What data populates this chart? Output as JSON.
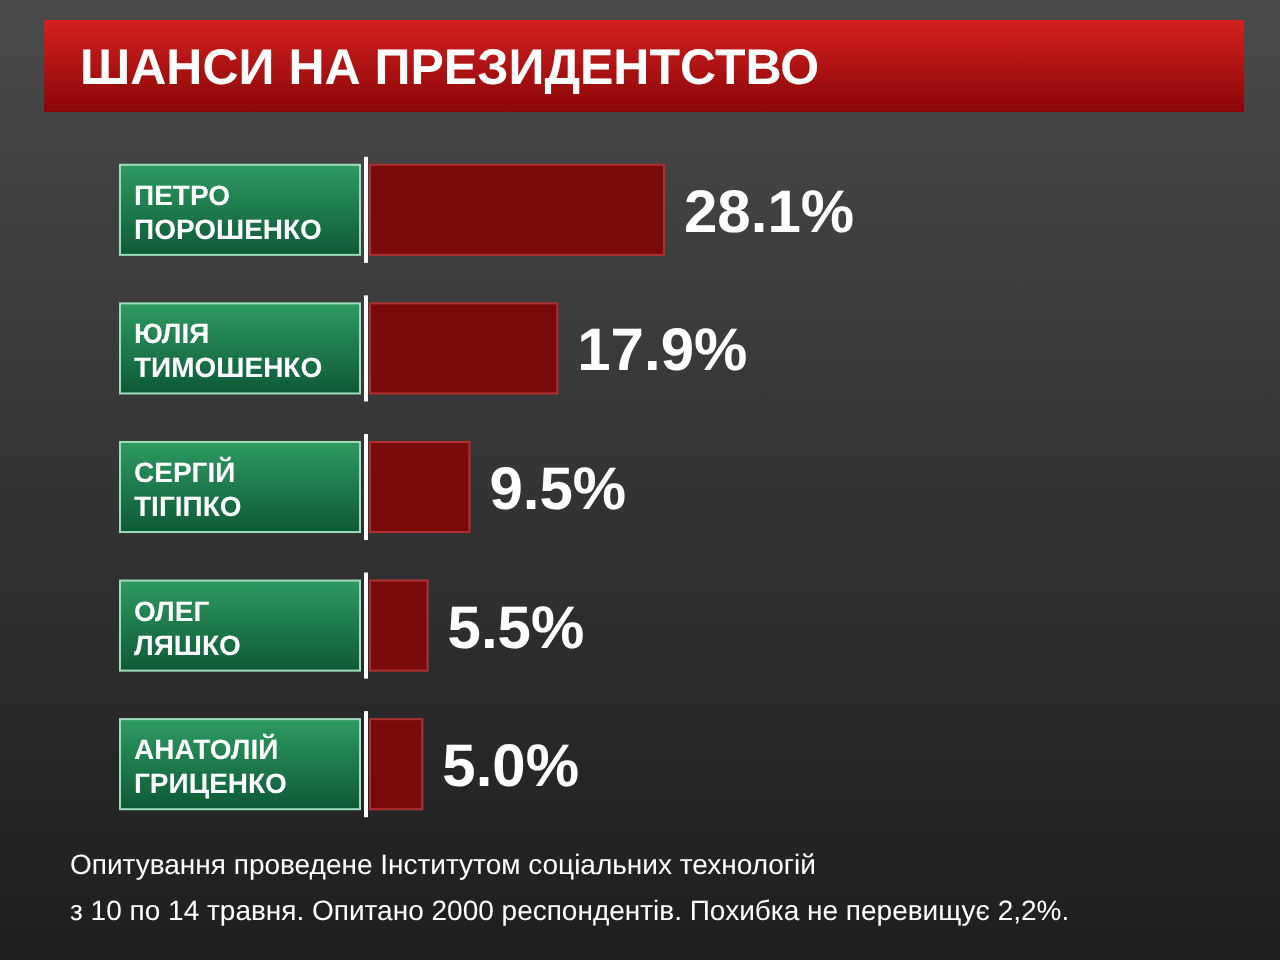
{
  "chart_data": {
    "type": "bar",
    "orientation": "horizontal",
    "title": "ШАНСИ НА ПРЕЗИДЕНТСТВО",
    "categories": [
      "ПЕТРО ПОРОШЕНКО",
      "ЮЛІЯ ТИМОШЕНКО",
      "СЕРГІЙ ТІГІПКО",
      "ОЛЕГ ЛЯШКО",
      "АНАТОЛІЙ ГРИЦЕНКО"
    ],
    "values": [
      28.1,
      17.9,
      9.5,
      5.5,
      5.0
    ],
    "value_labels": [
      "28.1%",
      "17.9%",
      "9.5%",
      "5.5%",
      "5.0%"
    ],
    "color": "#7a0a0a",
    "annotations": [
      "Опитування проведене Інститутом соціальних технологій",
      "з 10 по 14 травня. Опитано 2000 респондентів. Похибка не перевищує 2,2%."
    ]
  }
}
